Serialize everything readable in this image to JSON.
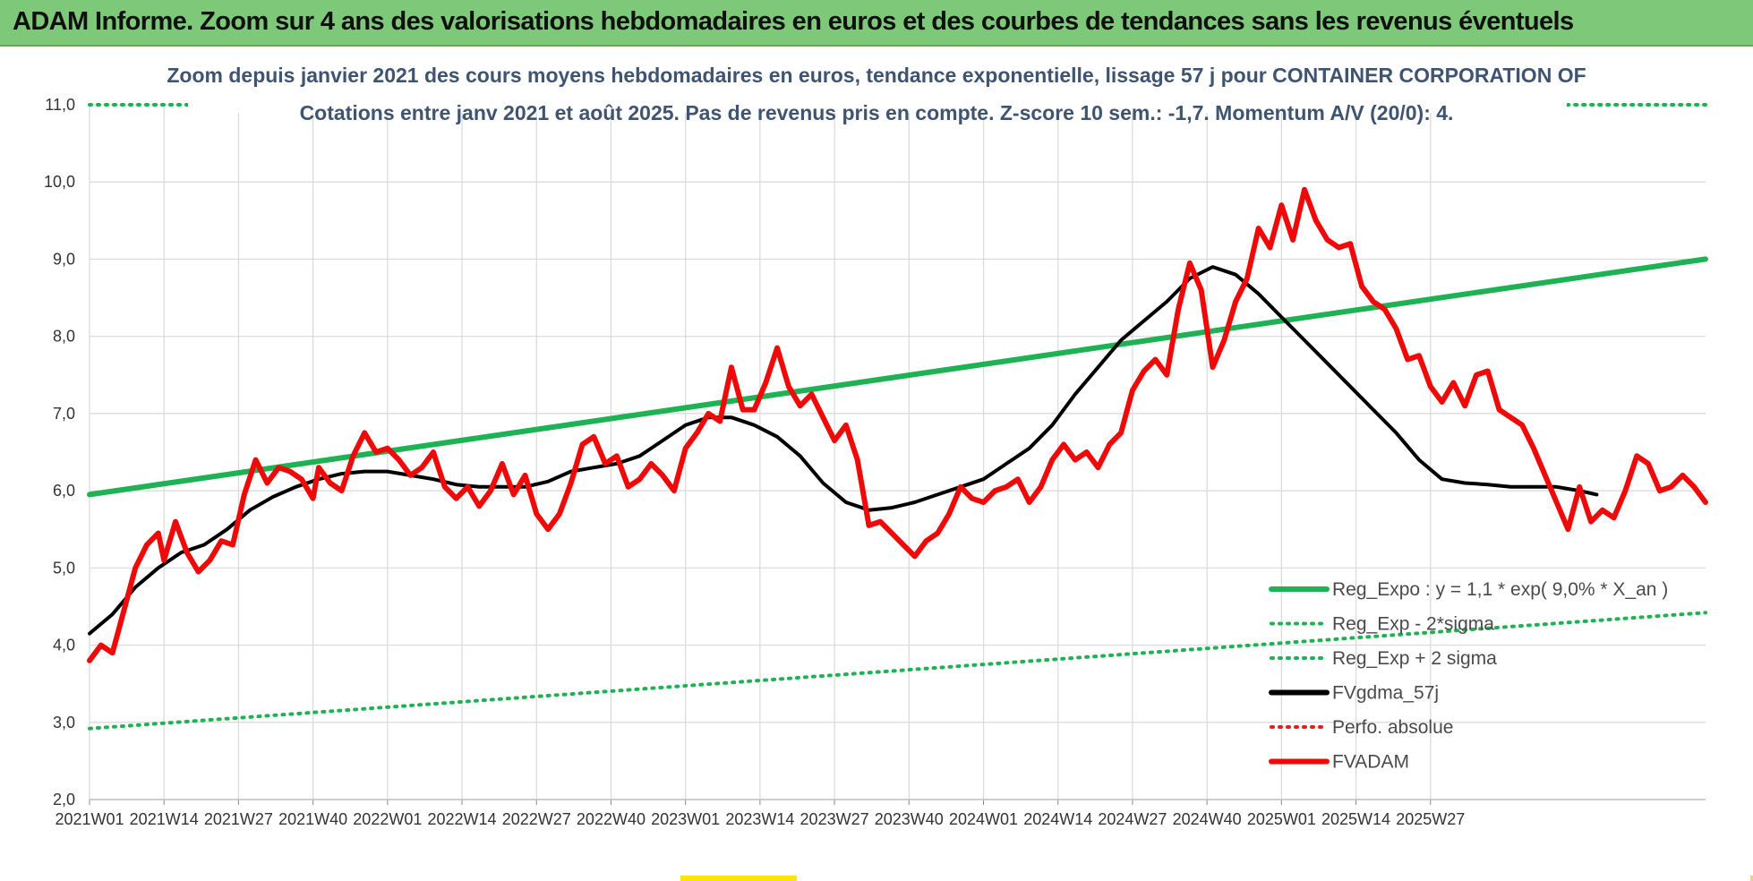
{
  "banner": {
    "title": "ADAM Informe. Zoom sur 4 ans des valorisations hebdomadaires en euros et des courbes de tendances sans les revenus éventuels"
  },
  "chart_data": {
    "type": "line",
    "title_line1": "Zoom depuis janvier 2021 des cours moyens hebdomadaires en euros, tendance exponentielle, lissage 57 j pour CONTAINER CORPORATION OF",
    "title_line2": "Cotations entre janv 2021 et août 2025.  Pas de revenus pris en compte. Z-score 10 sem.: -1,7. Momentum A/V (20/0): 4.",
    "ylim": [
      2.0,
      11.0
    ],
    "yticks": [
      "2,0",
      "3,0",
      "4,0",
      "5,0",
      "6,0",
      "7,0",
      "8,0",
      "9,0",
      "10,0",
      "11,0"
    ],
    "x_range_weeks": [
      0,
      236
    ],
    "xtick_labels": [
      "2021W01",
      "2021W14",
      "2021W27",
      "2021W40",
      "2022W01",
      "2022W14",
      "2022W27",
      "2022W40",
      "2023W01",
      "2023W14",
      "2023W27",
      "2023W40",
      "2024W01",
      "2024W14",
      "2024W27",
      "2024W40",
      "2025W01",
      "2025W14",
      "2025W27"
    ],
    "grid": true,
    "legend_position": "bottom-right",
    "series": [
      {
        "name": "Reg_Expo : y = 1,1 * exp( 9,0% *  X_an )",
        "color": "#1fb254",
        "style": "solid",
        "points": [
          [
            0,
            5.95
          ],
          [
            236,
            9.0
          ]
        ]
      },
      {
        "name": "Reg_Exp - 2*sigma",
        "color": "#1fb254",
        "style": "dotted",
        "points": [
          [
            0,
            2.92
          ],
          [
            236,
            4.42
          ]
        ]
      },
      {
        "name": "Reg_Exp + 2 sigma",
        "color": "#1fb254",
        "style": "dotted",
        "points": [
          [
            0,
            11.0
          ],
          [
            236,
            11.0
          ]
        ]
      },
      {
        "name": "FVgdma_57j",
        "color": "#000000",
        "style": "solid",
        "points": [
          [
            0,
            4.15
          ],
          [
            4,
            4.4
          ],
          [
            8,
            4.75
          ],
          [
            12,
            5.0
          ],
          [
            16,
            5.2
          ],
          [
            20,
            5.3
          ],
          [
            24,
            5.5
          ],
          [
            28,
            5.75
          ],
          [
            32,
            5.92
          ],
          [
            36,
            6.05
          ],
          [
            40,
            6.15
          ],
          [
            44,
            6.22
          ],
          [
            48,
            6.25
          ],
          [
            52,
            6.25
          ],
          [
            56,
            6.2
          ],
          [
            60,
            6.15
          ],
          [
            64,
            6.08
          ],
          [
            68,
            6.05
          ],
          [
            72,
            6.05
          ],
          [
            76,
            6.05
          ],
          [
            80,
            6.12
          ],
          [
            84,
            6.25
          ],
          [
            88,
            6.3
          ],
          [
            92,
            6.35
          ],
          [
            96,
            6.45
          ],
          [
            100,
            6.65
          ],
          [
            104,
            6.85
          ],
          [
            108,
            6.95
          ],
          [
            112,
            6.95
          ],
          [
            116,
            6.85
          ],
          [
            120,
            6.7
          ],
          [
            124,
            6.45
          ],
          [
            128,
            6.1
          ],
          [
            132,
            5.85
          ],
          [
            136,
            5.75
          ],
          [
            140,
            5.78
          ],
          [
            144,
            5.85
          ],
          [
            148,
            5.95
          ],
          [
            152,
            6.05
          ],
          [
            156,
            6.15
          ],
          [
            160,
            6.35
          ],
          [
            164,
            6.55
          ],
          [
            168,
            6.85
          ],
          [
            172,
            7.25
          ],
          [
            176,
            7.6
          ],
          [
            180,
            7.95
          ],
          [
            184,
            8.2
          ],
          [
            188,
            8.45
          ],
          [
            192,
            8.75
          ],
          [
            196,
            8.9
          ],
          [
            200,
            8.8
          ],
          [
            204,
            8.55
          ],
          [
            208,
            8.25
          ],
          [
            212,
            7.95
          ],
          [
            216,
            7.65
          ],
          [
            220,
            7.35
          ],
          [
            224,
            7.05
          ],
          [
            228,
            6.75
          ],
          [
            232,
            6.4
          ],
          [
            236,
            6.15
          ],
          [
            240,
            6.1
          ],
          [
            244,
            6.08
          ],
          [
            248,
            6.05
          ],
          [
            252,
            6.05
          ],
          [
            256,
            6.05
          ],
          [
            260,
            6.0
          ],
          [
            263,
            5.95
          ]
        ]
      },
      {
        "name": "Perfo. absolue",
        "color": "#e02020",
        "style": "dotted",
        "points": []
      },
      {
        "name": "FVADAM",
        "color": "#ef0a0a",
        "style": "solid",
        "points": [
          [
            0,
            3.8
          ],
          [
            2,
            4.0
          ],
          [
            4,
            3.9
          ],
          [
            6,
            4.45
          ],
          [
            8,
            5.0
          ],
          [
            10,
            5.3
          ],
          [
            12,
            5.45
          ],
          [
            13,
            5.1
          ],
          [
            15,
            5.6
          ],
          [
            17,
            5.2
          ],
          [
            19,
            4.95
          ],
          [
            21,
            5.1
          ],
          [
            23,
            5.35
          ],
          [
            25,
            5.3
          ],
          [
            27,
            5.95
          ],
          [
            29,
            6.4
          ],
          [
            31,
            6.1
          ],
          [
            33,
            6.3
          ],
          [
            35,
            6.25
          ],
          [
            37,
            6.15
          ],
          [
            39,
            5.9
          ],
          [
            40,
            6.3
          ],
          [
            42,
            6.1
          ],
          [
            44,
            6.0
          ],
          [
            46,
            6.45
          ],
          [
            48,
            6.75
          ],
          [
            50,
            6.5
          ],
          [
            52,
            6.55
          ],
          [
            54,
            6.4
          ],
          [
            56,
            6.2
          ],
          [
            58,
            6.3
          ],
          [
            60,
            6.5
          ],
          [
            62,
            6.05
          ],
          [
            64,
            5.9
          ],
          [
            66,
            6.05
          ],
          [
            68,
            5.8
          ],
          [
            70,
            6.0
          ],
          [
            72,
            6.35
          ],
          [
            74,
            5.95
          ],
          [
            76,
            6.2
          ],
          [
            78,
            5.7
          ],
          [
            80,
            5.5
          ],
          [
            82,
            5.7
          ],
          [
            84,
            6.1
          ],
          [
            86,
            6.6
          ],
          [
            88,
            6.7
          ],
          [
            90,
            6.35
          ],
          [
            92,
            6.45
          ],
          [
            94,
            6.05
          ],
          [
            96,
            6.15
          ],
          [
            98,
            6.35
          ],
          [
            100,
            6.2
          ],
          [
            102,
            6.0
          ],
          [
            104,
            6.55
          ],
          [
            106,
            6.75
          ],
          [
            108,
            7.0
          ],
          [
            110,
            6.9
          ],
          [
            112,
            7.6
          ],
          [
            114,
            7.05
          ],
          [
            116,
            7.05
          ],
          [
            118,
            7.4
          ],
          [
            120,
            7.85
          ],
          [
            122,
            7.35
          ],
          [
            124,
            7.1
          ],
          [
            126,
            7.25
          ],
          [
            128,
            6.95
          ],
          [
            130,
            6.65
          ],
          [
            132,
            6.85
          ],
          [
            134,
            6.4
          ],
          [
            136,
            5.55
          ],
          [
            138,
            5.6
          ],
          [
            140,
            5.45
          ],
          [
            142,
            5.3
          ],
          [
            144,
            5.15
          ],
          [
            146,
            5.35
          ],
          [
            148,
            5.45
          ],
          [
            150,
            5.7
          ],
          [
            152,
            6.05
          ],
          [
            154,
            5.9
          ],
          [
            156,
            5.85
          ],
          [
            158,
            6.0
          ],
          [
            160,
            6.05
          ],
          [
            162,
            6.15
          ],
          [
            164,
            5.85
          ],
          [
            166,
            6.05
          ],
          [
            168,
            6.4
          ],
          [
            170,
            6.6
          ],
          [
            172,
            6.4
          ],
          [
            174,
            6.5
          ],
          [
            176,
            6.3
          ],
          [
            178,
            6.6
          ],
          [
            180,
            6.75
          ],
          [
            182,
            7.3
          ],
          [
            184,
            7.55
          ],
          [
            186,
            7.7
          ],
          [
            188,
            7.5
          ],
          [
            190,
            8.35
          ],
          [
            192,
            8.95
          ],
          [
            194,
            8.6
          ],
          [
            196,
            7.6
          ],
          [
            198,
            7.95
          ],
          [
            200,
            8.45
          ],
          [
            202,
            8.75
          ],
          [
            204,
            9.4
          ],
          [
            206,
            9.15
          ],
          [
            208,
            9.7
          ],
          [
            210,
            9.25
          ],
          [
            212,
            9.9
          ],
          [
            214,
            9.5
          ],
          [
            216,
            9.25
          ],
          [
            218,
            9.15
          ],
          [
            220,
            9.2
          ],
          [
            222,
            8.65
          ],
          [
            224,
            8.45
          ],
          [
            226,
            8.35
          ],
          [
            228,
            8.1
          ],
          [
            230,
            7.7
          ],
          [
            232,
            7.75
          ],
          [
            234,
            7.35
          ],
          [
            236,
            7.15
          ],
          [
            238,
            7.4
          ],
          [
            240,
            7.1
          ],
          [
            242,
            7.5
          ],
          [
            244,
            7.55
          ],
          [
            246,
            7.05
          ],
          [
            248,
            6.95
          ],
          [
            250,
            6.85
          ],
          [
            252,
            6.55
          ],
          [
            254,
            6.2
          ],
          [
            256,
            5.85
          ],
          [
            258,
            5.5
          ],
          [
            260,
            6.05
          ],
          [
            262,
            5.6
          ],
          [
            264,
            5.75
          ],
          [
            266,
            5.65
          ],
          [
            268,
            6.0
          ],
          [
            270,
            6.45
          ],
          [
            272,
            6.35
          ],
          [
            274,
            6.0
          ],
          [
            276,
            6.05
          ],
          [
            278,
            6.2
          ],
          [
            280,
            6.05
          ],
          [
            282,
            5.85
          ]
        ]
      }
    ]
  }
}
